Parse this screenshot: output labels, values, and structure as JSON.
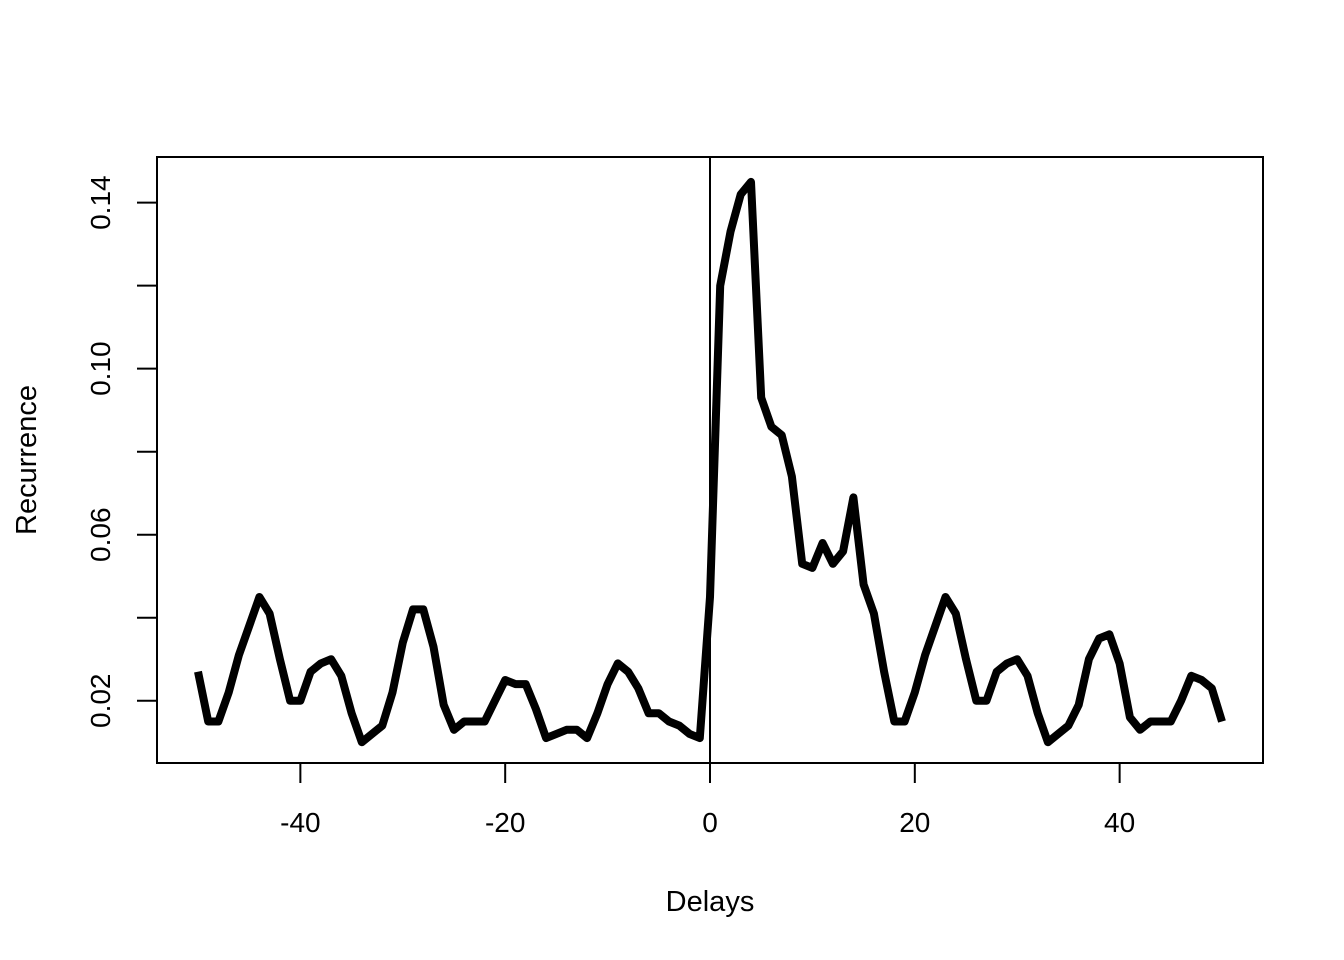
{
  "chart_data": {
    "type": "line",
    "title": "",
    "xlabel": "Delays",
    "ylabel": "Recurrence",
    "xlim": [
      -54,
      54
    ],
    "ylim": [
      0.005,
      0.151
    ],
    "xticks": [
      -40,
      -20,
      0,
      20,
      40
    ],
    "xtick_labels": [
      "-40",
      "-20",
      "0",
      "20",
      "40"
    ],
    "yticks": [
      0.02,
      0.04,
      0.06,
      0.08,
      0.1,
      0.12,
      0.14
    ],
    "ytick_labels": [
      "0.02",
      "",
      "0.06",
      "",
      "0.10",
      "",
      "0.14"
    ],
    "vline_at": 0,
    "grid": false,
    "line_color": "#000000",
    "series": [
      {
        "x": [
          -50,
          -49,
          -48,
          -47,
          -46,
          -45,
          -44,
          -43,
          -42,
          -41,
          -40,
          -39,
          -38,
          -37,
          -36,
          -35,
          -34,
          -33,
          -32,
          -31,
          -30,
          -29,
          -28,
          -27,
          -26,
          -25,
          -24,
          -23,
          -22,
          -21,
          -20,
          -19,
          -18,
          -17,
          -16,
          -15,
          -14,
          -13,
          -12,
          -11,
          -10,
          -9,
          -8,
          -7,
          -6,
          -5,
          -4,
          -3,
          -2,
          -1,
          0,
          1,
          2,
          3,
          4,
          5,
          6,
          7,
          8,
          9,
          10,
          11,
          12,
          13,
          14,
          15,
          16,
          17,
          18,
          19,
          20,
          21,
          22,
          23,
          24,
          25,
          26,
          27,
          28,
          29,
          30,
          31,
          32,
          33,
          34,
          35,
          36,
          37,
          38,
          39,
          40,
          41,
          42,
          43,
          44,
          45,
          46,
          47,
          48,
          49,
          50
        ],
        "values": [
          0.027,
          0.015,
          0.015,
          0.022,
          0.031,
          0.038,
          0.045,
          0.041,
          0.03,
          0.02,
          0.02,
          0.027,
          0.029,
          0.03,
          0.026,
          0.017,
          0.01,
          0.012,
          0.014,
          0.022,
          0.034,
          0.042,
          0.042,
          0.033,
          0.019,
          0.013,
          0.015,
          0.015,
          0.015,
          0.02,
          0.025,
          0.024,
          0.024,
          0.018,
          0.011,
          0.012,
          0.013,
          0.013,
          0.011,
          0.017,
          0.024,
          0.029,
          0.027,
          0.023,
          0.017,
          0.017,
          0.015,
          0.014,
          0.012,
          0.011,
          0.045,
          0.12,
          0.133,
          0.142,
          0.145,
          0.093,
          0.086,
          0.084,
          0.074,
          0.053,
          0.052,
          0.058,
          0.053,
          0.056,
          0.069,
          0.048,
          0.041,
          0.027,
          0.015,
          0.015,
          0.022,
          0.031,
          0.038,
          0.045,
          0.041,
          0.03,
          0.02,
          0.02,
          0.027,
          0.029,
          0.03,
          0.026,
          0.017,
          0.01,
          0.012,
          0.014,
          0.019,
          0.03,
          0.035,
          0.036,
          0.029,
          0.016,
          0.013,
          0.015,
          0.015,
          0.015,
          0.02,
          0.026,
          0.025,
          0.023,
          0.015
        ]
      }
    ]
  }
}
